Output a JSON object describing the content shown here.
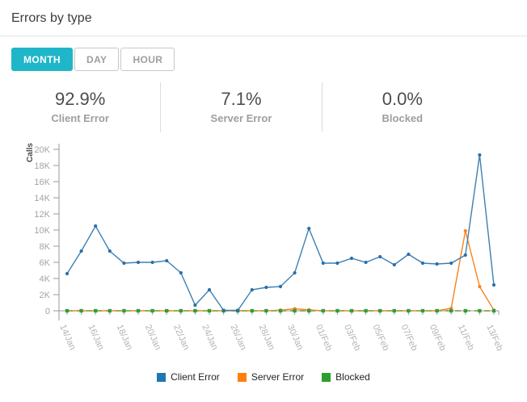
{
  "header": {
    "title": "Errors by type"
  },
  "tabs": [
    {
      "label": "MONTH",
      "active": true
    },
    {
      "label": "DAY",
      "active": false
    },
    {
      "label": "HOUR",
      "active": false
    }
  ],
  "stats": [
    {
      "value": "92.9%",
      "label": "Client Error"
    },
    {
      "value": "7.1%",
      "label": "Server Error"
    },
    {
      "value": "0.0%",
      "label": "Blocked"
    }
  ],
  "colors": {
    "tab_active_bg": "#1fb6c9",
    "client_error": "#1f77b4",
    "server_error": "#ff7f0e",
    "blocked": "#2ca02c"
  },
  "chart_data": {
    "type": "line",
    "ylabel": "Calls",
    "ylim": [
      0,
      20000
    ],
    "ytick_step": 2000,
    "ytick_labels": [
      "0",
      "2K",
      "4K",
      "6K",
      "8K",
      "10K",
      "12K",
      "14K",
      "16K",
      "18K",
      "20K"
    ],
    "grid": false,
    "legend_position": "bottom",
    "xtick_label_every": 2,
    "x": [
      "14/Jan",
      "15/Jan",
      "16/Jan",
      "17/Jan",
      "18/Jan",
      "19/Jan",
      "20/Jan",
      "21/Jan",
      "22/Jan",
      "23/Jan",
      "24/Jan",
      "25/Jan",
      "26/Jan",
      "27/Jan",
      "28/Jan",
      "29/Jan",
      "30/Jan",
      "31/Jan",
      "01/Feb",
      "02/Feb",
      "03/Feb",
      "04/Feb",
      "05/Feb",
      "06/Feb",
      "07/Feb",
      "08/Feb",
      "09/Feb",
      "10/Feb",
      "11/Feb",
      "12/Feb",
      "13/Feb"
    ],
    "series": [
      {
        "name": "Client Error",
        "color": "#1f77b4",
        "values": [
          4600,
          7400,
          10500,
          7400,
          5900,
          6000,
          6000,
          6200,
          4700,
          700,
          2600,
          50,
          50,
          2600,
          2900,
          3000,
          4700,
          10200,
          5900,
          5900,
          6500,
          6000,
          6700,
          5700,
          7000,
          5900,
          5800,
          5900,
          6900,
          19300,
          3200
        ]
      },
      {
        "name": "Server Error",
        "color": "#ff7f0e",
        "values": [
          0,
          0,
          0,
          0,
          0,
          0,
          0,
          0,
          0,
          0,
          0,
          0,
          0,
          0,
          0,
          80,
          250,
          120,
          0,
          0,
          0,
          0,
          0,
          0,
          0,
          0,
          0,
          300,
          9900,
          3000,
          80
        ]
      },
      {
        "name": "Blocked",
        "color": "#2ca02c",
        "values": [
          0,
          0,
          0,
          0,
          0,
          0,
          0,
          0,
          0,
          0,
          0,
          0,
          0,
          0,
          0,
          0,
          0,
          0,
          0,
          0,
          0,
          0,
          0,
          0,
          0,
          0,
          0,
          0,
          0,
          0,
          0
        ]
      }
    ]
  }
}
